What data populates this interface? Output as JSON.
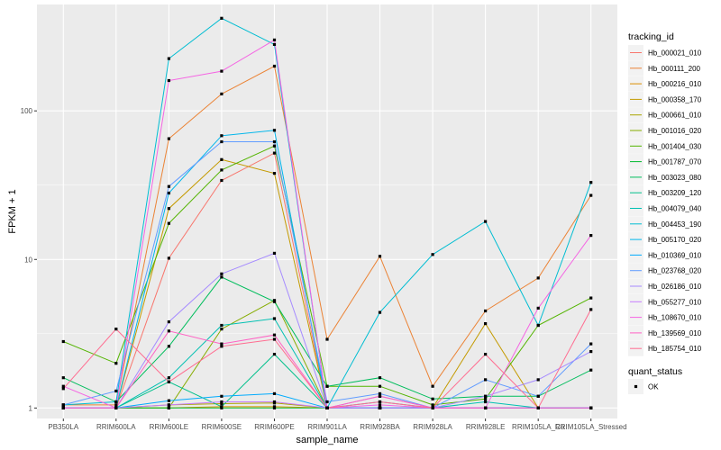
{
  "chart_data": {
    "type": "line",
    "title": "",
    "xlabel": "sample_name",
    "ylabel": "FPKM + 1",
    "y_scale": "log10",
    "ylim": [
      0.85,
      520
    ],
    "y_ticks": [
      {
        "value": 1,
        "label": "1"
      },
      {
        "value": 10,
        "label": "10"
      },
      {
        "value": 100,
        "label": "100"
      }
    ],
    "categories": [
      "PB350LA",
      "RRIM600LA",
      "RRIM600LE",
      "RRIM600SE",
      "RRIM600PE",
      "RRIM901LA",
      "RRIM928BA",
      "RRIM928LA",
      "RRIM928LE",
      "RRIM105LA_Control",
      "RRIM105LA_Stressed"
    ],
    "category_labels": [
      "PB350LA",
      "RRIM600LA",
      "RRIM600LE",
      "RRIM600SE",
      "RRIM600PE",
      "RRIM901LA",
      "RRIM928BA",
      "RRIM928LA",
      "RRIM928LE",
      "RRIM105LA_Co",
      "RRIM105LA_Stressed"
    ],
    "grid": true,
    "panel_background": "#ebebeb",
    "grid_color": "#ffffff",
    "legend": {
      "placement": "right",
      "title": "tracking_id",
      "shape_title": "quant_status",
      "shape_entries": [
        "OK"
      ]
    },
    "point_color": "#000000",
    "series": [
      {
        "name": "Hb_000021_010",
        "color": "#F8766D",
        "values": [
          1.0,
          1.0,
          10.2,
          34,
          52,
          1.0,
          1.0,
          1.0,
          1.0,
          1.0,
          1.0
        ]
      },
      {
        "name": "Hb_000111_200",
        "color": "#EB8335",
        "values": [
          1.05,
          1.05,
          65,
          130,
          200,
          2.9,
          10.5,
          1.4,
          4.5,
          7.5,
          27
        ]
      },
      {
        "name": "Hb_000216_010",
        "color": "#DA8F00",
        "values": [
          1.0,
          1.0,
          1.0,
          1.02,
          1.02,
          1.0,
          1.0,
          1.0,
          1.0,
          1.0,
          1.0
        ]
      },
      {
        "name": "Hb_000358_170",
        "color": "#C49A00",
        "values": [
          1.0,
          1.0,
          22,
          47,
          38,
          1.0,
          1.0,
          1.0,
          3.7,
          1.0,
          1.0
        ]
      },
      {
        "name": "Hb_000661_010",
        "color": "#A9A400",
        "values": [
          1.0,
          1.0,
          1.05,
          1.07,
          1.08,
          1.0,
          1.0,
          1.0,
          1.0,
          1.0,
          1.0
        ]
      },
      {
        "name": "Hb_001016_020",
        "color": "#86AC00",
        "values": [
          1.0,
          1.0,
          1.0,
          3.4,
          5.3,
          1.0,
          1.0,
          1.0,
          1.0,
          1.0,
          1.0
        ]
      },
      {
        "name": "Hb_001404_030",
        "color": "#53B400",
        "values": [
          2.8,
          2.0,
          17.5,
          40,
          58,
          1.4,
          1.4,
          1.05,
          1.15,
          3.6,
          5.5
        ]
      },
      {
        "name": "Hb_001787_070",
        "color": "#00B92E",
        "values": [
          1.0,
          1.0,
          1.0,
          1.0,
          1.0,
          1.0,
          1.0,
          1.0,
          1.0,
          1.0,
          1.0
        ]
      },
      {
        "name": "Hb_003023_080",
        "color": "#00BD5C",
        "values": [
          1.6,
          1.1,
          2.6,
          7.6,
          5.2,
          1.4,
          1.6,
          1.15,
          1.2,
          1.2,
          1.8
        ]
      },
      {
        "name": "Hb_003209_120",
        "color": "#00C08B",
        "values": [
          1.0,
          1.0,
          1.5,
          1.02,
          2.3,
          1.0,
          1.0,
          1.0,
          1.0,
          1.0,
          1.0
        ]
      },
      {
        "name": "Hb_004079_040",
        "color": "#00C0B2",
        "values": [
          1.0,
          1.0,
          1.6,
          3.6,
          4.0,
          1.0,
          1.1,
          1.0,
          1.1,
          1.0,
          1.0
        ]
      },
      {
        "name": "Hb_004453_190",
        "color": "#00BDD2",
        "values": [
          1.05,
          1.1,
          225,
          420,
          280,
          1.0,
          4.4,
          10.8,
          18,
          3.6,
          33
        ]
      },
      {
        "name": "Hb_005170_020",
        "color": "#00B6EB",
        "values": [
          1.0,
          1.0,
          28,
          68,
          74,
          1.0,
          1.0,
          1.0,
          1.0,
          1.0,
          1.0
        ]
      },
      {
        "name": "Hb_010369_010",
        "color": "#00ABFD",
        "values": [
          1.0,
          1.0,
          1.12,
          1.2,
          1.25,
          1.0,
          1.0,
          1.0,
          1.0,
          1.0,
          1.0
        ]
      },
      {
        "name": "Hb_023768_020",
        "color": "#619CFF",
        "values": [
          1.05,
          1.3,
          31,
          62,
          62,
          1.1,
          1.25,
          1.0,
          1.55,
          1.2,
          2.7
        ]
      },
      {
        "name": "Hb_026186_010",
        "color": "#A58AFF",
        "values": [
          1.0,
          1.0,
          3.8,
          8.0,
          11,
          1.0,
          1.2,
          1.0,
          1.2,
          1.55,
          2.4
        ]
      },
      {
        "name": "Hb_055277_010",
        "color": "#C77CFF",
        "values": [
          1.0,
          1.0,
          1.05,
          1.1,
          1.1,
          1.0,
          1.0,
          1.0,
          1.0,
          1.0,
          1.0
        ]
      },
      {
        "name": "Hb_108670_010",
        "color": "#F564E3",
        "values": [
          1.4,
          1.0,
          160,
          185,
          300,
          1.0,
          1.05,
          1.0,
          1.0,
          4.7,
          14.5
        ]
      },
      {
        "name": "Hb_139569_010",
        "color": "#FF61C3",
        "values": [
          1.0,
          1.0,
          3.3,
          2.7,
          3.1,
          1.0,
          1.2,
          1.0,
          1.0,
          1.0,
          1.0
        ]
      },
      {
        "name": "Hb_185754_010",
        "color": "#FF6C90",
        "values": [
          1.35,
          3.4,
          1.5,
          2.6,
          2.9,
          1.0,
          1.1,
          1.0,
          2.3,
          1.0,
          4.6
        ]
      }
    ]
  }
}
